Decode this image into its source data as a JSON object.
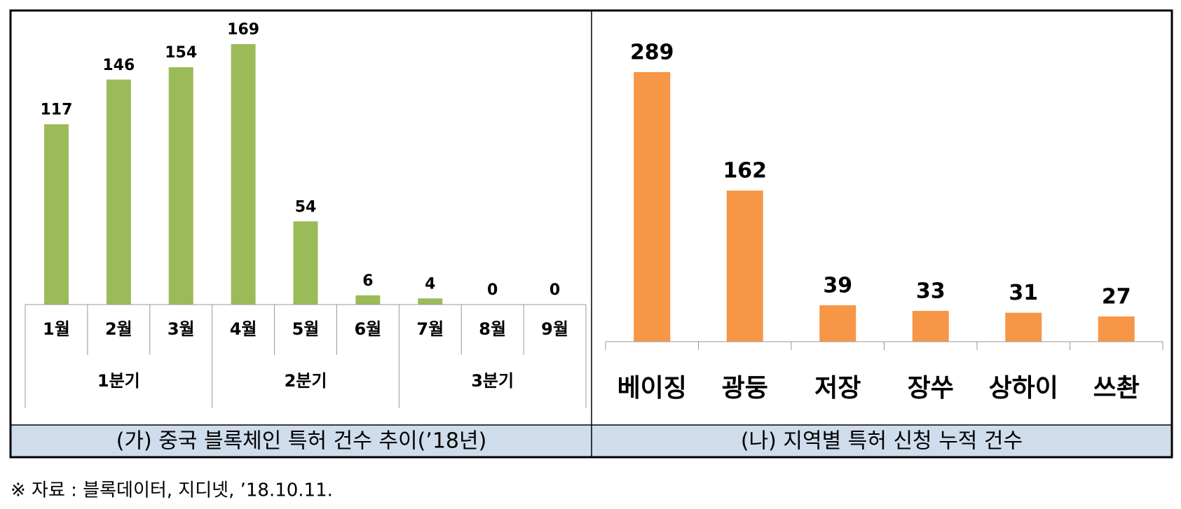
{
  "chart_data": [
    {
      "type": "bar",
      "categories": [
        "1월",
        "2월",
        "3월",
        "4월",
        "5월",
        "6월",
        "7월",
        "8월",
        "9월"
      ],
      "groups": [
        "1분기",
        "2분기",
        "3분기"
      ],
      "values": [
        117,
        146,
        154,
        169,
        54,
        6,
        4,
        0,
        0
      ],
      "color": "#9bbb59",
      "caption": "(가) 중국 블록체인 특허 건수 추이(’18년)"
    },
    {
      "type": "bar",
      "categories": [
        "베이징",
        "광둥",
        "저장",
        "장쑤",
        "상하이",
        "쓰촨"
      ],
      "values": [
        289,
        162,
        39,
        33,
        31,
        27
      ],
      "color": "#f79646",
      "caption": "(나) 지역별 특허 신청 누적 건수"
    }
  ],
  "source": "※  자료 : 블록데이터, 지디넷, ’18.10.11."
}
